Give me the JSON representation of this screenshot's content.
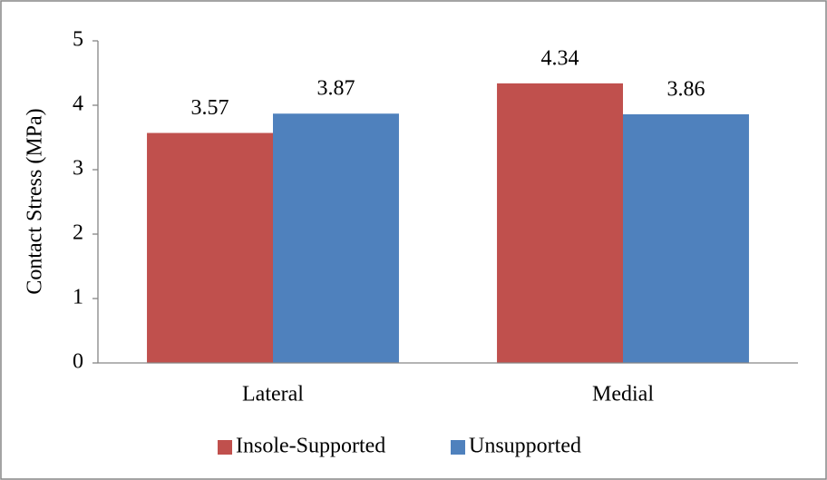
{
  "chart_data": {
    "type": "bar",
    "y_label": "Contact Stress (MPa)",
    "categories": [
      "Lateral",
      "Medial"
    ],
    "series": [
      {
        "name": "Insole-Supported",
        "color": "#c0504d",
        "values": [
          3.57,
          4.34
        ]
      },
      {
        "name": "Unsupported",
        "color": "#4f81bd",
        "values": [
          3.87,
          3.86
        ]
      }
    ],
    "ylim": [
      0,
      5
    ],
    "yticks": [
      0,
      1,
      2,
      3,
      4,
      5
    ],
    "grid": false,
    "legend": "bottom"
  }
}
